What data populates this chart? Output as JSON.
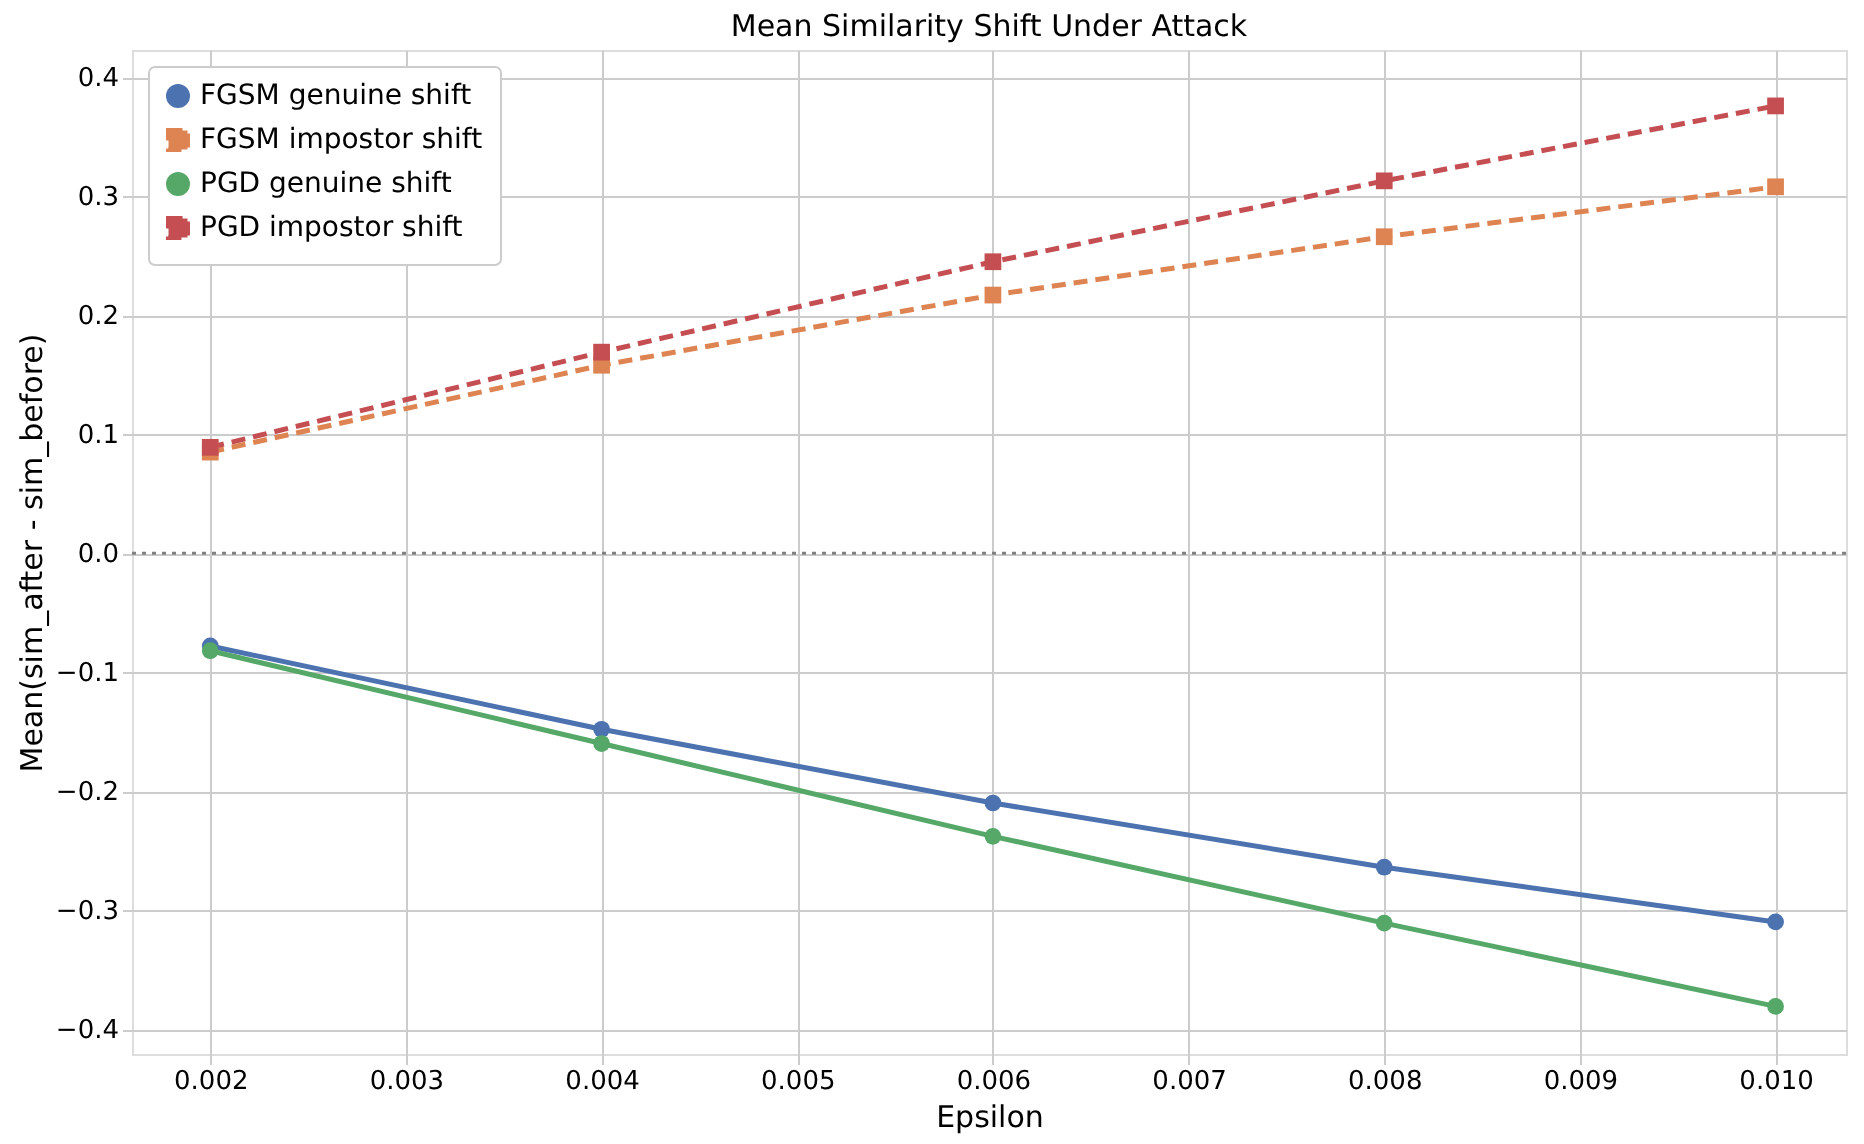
{
  "chart_data": {
    "type": "line",
    "title": "Mean Similarity Shift Under Attack",
    "xlabel": "Epsilon",
    "ylabel": "Mean(sim_after - sim_before)",
    "x": [
      0.002,
      0.004,
      0.006,
      0.008,
      0.01
    ],
    "series": [
      {
        "name": "FGSM genuine shift",
        "color": "#4c72b0",
        "marker": "circle",
        "line_style": "solid",
        "values": [
          -0.078,
          -0.148,
          -0.21,
          -0.264,
          -0.31
        ]
      },
      {
        "name": "FGSM impostor shift",
        "color": "#dd8452",
        "marker": "square",
        "line_style": "dashed",
        "values": [
          0.085,
          0.158,
          0.217,
          0.266,
          0.308
        ]
      },
      {
        "name": "PGD genuine shift",
        "color": "#55a868",
        "marker": "circle",
        "line_style": "solid",
        "values": [
          -0.082,
          -0.16,
          -0.238,
          -0.311,
          -0.381
        ]
      },
      {
        "name": "PGD impostor shift",
        "color": "#c44e52",
        "marker": "square",
        "line_style": "dashed",
        "values": [
          0.089,
          0.169,
          0.245,
          0.313,
          0.376
        ]
      }
    ],
    "xlim": [
      0.0016,
      0.01036
    ],
    "xticks": [
      {
        "value": 0.002,
        "label": "0.002"
      },
      {
        "value": 0.003,
        "label": "0.003"
      },
      {
        "value": 0.004,
        "label": "0.004"
      },
      {
        "value": 0.005,
        "label": "0.005"
      },
      {
        "value": 0.006,
        "label": "0.006"
      },
      {
        "value": 0.007,
        "label": "0.007"
      },
      {
        "value": 0.008,
        "label": "0.008"
      },
      {
        "value": 0.009,
        "label": "0.009"
      },
      {
        "value": 0.01,
        "label": "0.010"
      }
    ],
    "ylim": [
      -0.421,
      0.423
    ],
    "yticks": [
      {
        "value": -0.4,
        "label": "−0.4"
      },
      {
        "value": -0.3,
        "label": "−0.3"
      },
      {
        "value": -0.2,
        "label": "−0.2"
      },
      {
        "value": -0.1,
        "label": "−0.1"
      },
      {
        "value": 0.0,
        "label": "0.0"
      },
      {
        "value": 0.1,
        "label": "0.1"
      },
      {
        "value": 0.2,
        "label": "0.2"
      },
      {
        "value": 0.3,
        "label": "0.3"
      },
      {
        "value": 0.4,
        "label": "0.4"
      }
    ],
    "ref_lines": [
      {
        "axis": "y",
        "value": 0,
        "label": null,
        "color": "#808080",
        "line_style": "dotted"
      }
    ],
    "grid": true,
    "legend": "top left"
  }
}
